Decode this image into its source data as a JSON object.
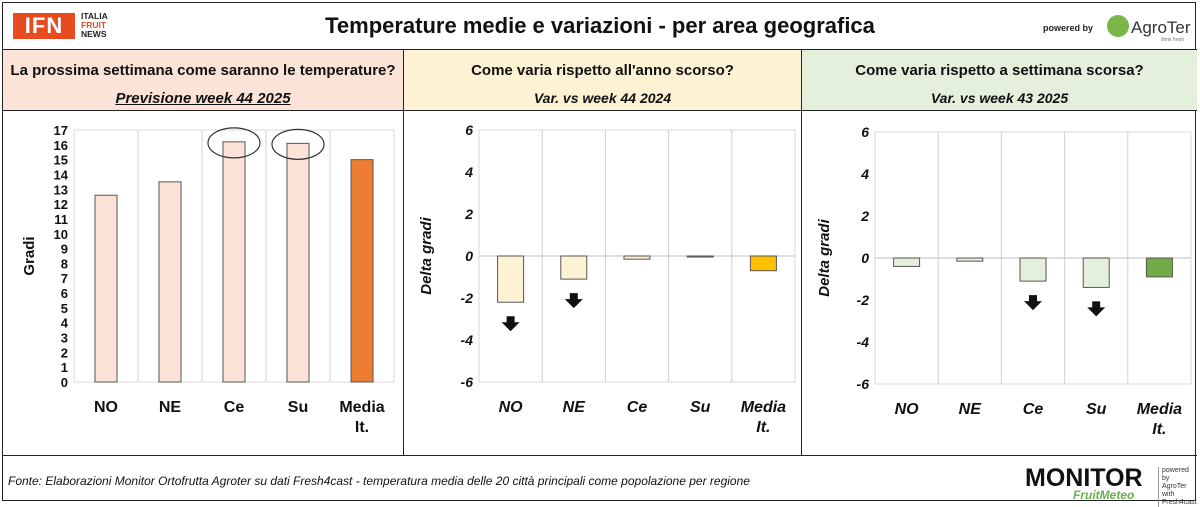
{
  "header": {
    "logo_text": "IFN",
    "logo_sub": [
      "ITALIA",
      "FRUIT",
      "NEWS"
    ],
    "title": "Temperature medie e variazioni - per area geografica",
    "powered_by": "powered by",
    "brand": "AgroTer",
    "brand_tag": "think fresh"
  },
  "panels": [
    {
      "title": "La prossima settimana come saranno le temperature?",
      "subtitle": "Previsione week 44 2025"
    },
    {
      "title": "Come varia rispetto all'anno scorso?",
      "subtitle": "Var. vs week 44 2024"
    },
    {
      "title": "Come varia rispetto a settimana scorsa?",
      "subtitle": "Var. vs week 43 2025"
    }
  ],
  "footer": {
    "source": "Fonte: Elaborazioni Monitor Ortofrutta Agroter su dati Fresh4cast - temperatura media delle 20 città principali come popolazione per regione",
    "monitor_title": "MONITOR",
    "monitor_sub": "FruitMeteo",
    "monitor_side": [
      "powered by",
      "AgroTer",
      "with",
      "Fresh4cast"
    ]
  },
  "chart_data": [
    {
      "type": "bar",
      "categories": [
        "NO",
        "NE",
        "Ce",
        "Su",
        "Media It."
      ],
      "values": [
        12.6,
        13.5,
        16.2,
        16.1,
        15.0
      ],
      "ylabel": "Gradi",
      "ylim": [
        0,
        17
      ],
      "yticks": [
        0,
        1,
        2,
        3,
        4,
        5,
        6,
        7,
        8,
        9,
        10,
        11,
        12,
        13,
        14,
        15,
        16,
        17
      ],
      "grid": "vertical",
      "colors": [
        "#fbe3d8",
        "#fbe3d8",
        "#fbe3d8",
        "#fbe3d8",
        "#ed7d31"
      ],
      "highlighted": [
        "Ce",
        "Su"
      ]
    },
    {
      "type": "bar",
      "categories": [
        "NO",
        "NE",
        "Ce",
        "Su",
        "Media It."
      ],
      "values": [
        -2.2,
        -1.1,
        -0.15,
        -0.05,
        -0.7
      ],
      "ylabel": "Delta gradi",
      "ylim": [
        -6,
        6
      ],
      "yticks": [
        -6,
        -4,
        -2,
        0,
        2,
        4,
        6
      ],
      "grid": "vertical",
      "colors": [
        "#fdf2d3",
        "#fdf2d3",
        "#fdf2d3",
        "#fdf2d3",
        "#ffc000"
      ],
      "down_arrows": [
        "NO",
        "NE"
      ]
    },
    {
      "type": "bar",
      "categories": [
        "NO",
        "NE",
        "Ce",
        "Su",
        "Media It."
      ],
      "values": [
        -0.4,
        -0.15,
        -1.1,
        -1.4,
        -0.9
      ],
      "ylabel": "Delta gradi",
      "ylim": [
        -6,
        6
      ],
      "yticks": [
        -6,
        -4,
        -2,
        0,
        2,
        4,
        6
      ],
      "grid": "vertical",
      "colors": [
        "#e5f0dc",
        "#e5f0dc",
        "#e5f0dc",
        "#e5f0dc",
        "#70ad47"
      ],
      "down_arrows": [
        "Ce",
        "Su"
      ]
    }
  ]
}
